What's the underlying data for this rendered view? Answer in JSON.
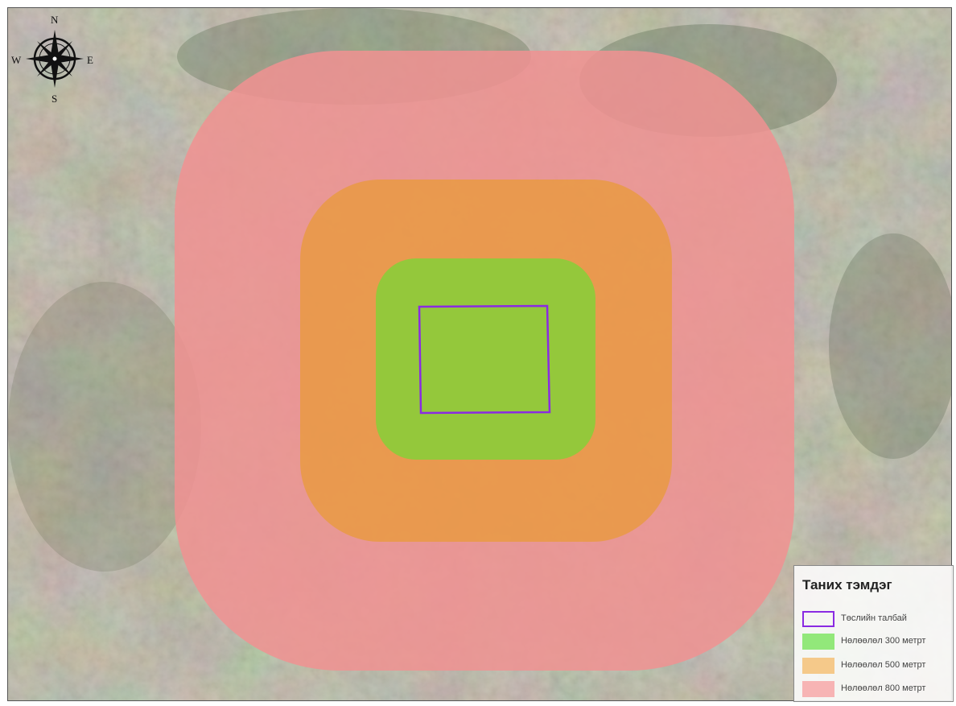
{
  "map": {
    "zones": [
      {
        "id": "zone-800",
        "label": "Нөлөөлөл 800 метрт",
        "color": "#f09191"
      },
      {
        "id": "zone-500",
        "label": "Нөлөөлөл 500 метрт",
        "color": "#e89a45"
      },
      {
        "id": "zone-300",
        "label": "Нөлөөлөл 300 метрт",
        "color": "#8ccc3a"
      }
    ],
    "site_boundary": {
      "label": "Төслийн талбай",
      "color": "#8a2be2"
    }
  },
  "compass": {
    "north": "N",
    "south": "S",
    "east": "E",
    "west": "W",
    "icon": "compass-rose-icon"
  },
  "legend": {
    "title": "Таних тэмдэг",
    "items": [
      {
        "label": "Төслийн талбай",
        "swatch": "outline",
        "color": "#8a2be2"
      },
      {
        "label": "Нөлөөлөл 300 метрт",
        "swatch": "fill",
        "color": "#92e87a"
      },
      {
        "label": "Нөлөөлөл 500 метрт",
        "swatch": "fill",
        "color": "#f5c98a"
      },
      {
        "label": "Нөлөөлөл 800 метрт",
        "swatch": "fill",
        "color": "#f7b4b4"
      }
    ]
  }
}
